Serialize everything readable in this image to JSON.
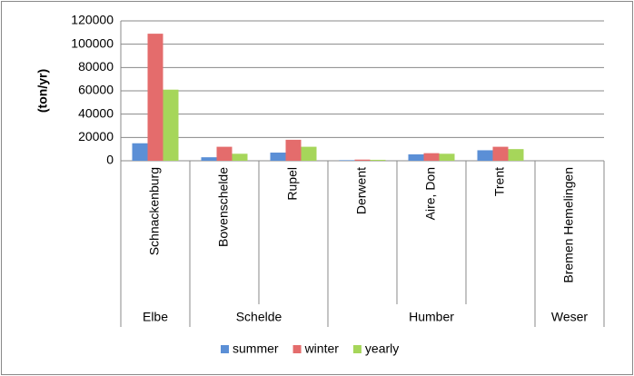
{
  "chart_data": {
    "type": "bar",
    "y_label": "(ton/yr)",
    "categories": [
      "Schnackenburg",
      "Bovenschelde",
      "Rupel",
      "Derwent",
      "Aire, Don",
      "Trent",
      "Bremen Hemelingen"
    ],
    "groups": [
      {
        "label": "Elbe",
        "count": 1
      },
      {
        "label": "Schelde",
        "count": 2
      },
      {
        "label": "Humber",
        "count": 3
      },
      {
        "label": "Weser",
        "count": 1
      }
    ],
    "series": [
      {
        "name": "summer",
        "color": "#5b8fd6",
        "values": [
          15000,
          3000,
          7000,
          500,
          5500,
          9000,
          null
        ]
      },
      {
        "name": "winter",
        "color": "#e46c6c",
        "values": [
          109000,
          12000,
          18000,
          1000,
          6500,
          12000,
          null
        ]
      },
      {
        "name": "yearly",
        "color": "#a6d65a",
        "values": [
          61000,
          6000,
          12000,
          800,
          6000,
          10000,
          null
        ]
      }
    ],
    "ylim": [
      0,
      120000
    ],
    "yticks": [
      0,
      20000,
      40000,
      60000,
      80000,
      100000,
      120000
    ],
    "grid": true,
    "legend": "bottom"
  }
}
